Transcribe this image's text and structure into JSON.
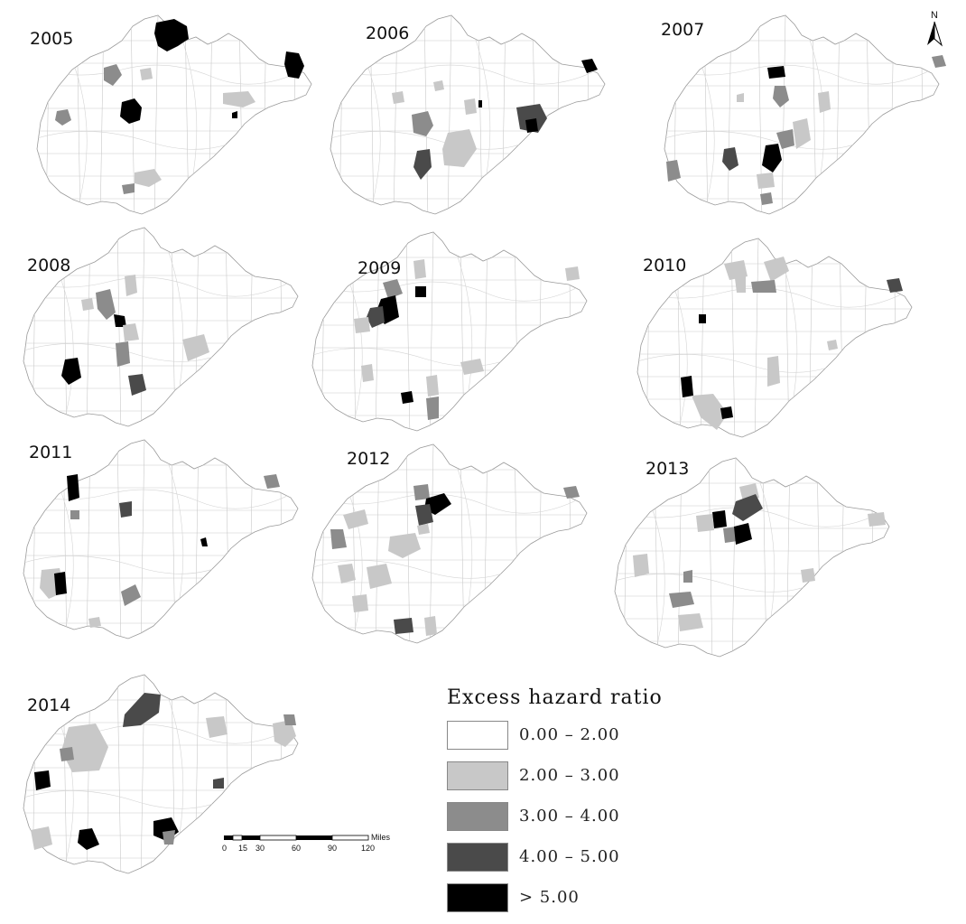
{
  "maps": [
    {
      "year": "2005"
    },
    {
      "year": "2006"
    },
    {
      "year": "2007"
    },
    {
      "year": "2008"
    },
    {
      "year": "2009"
    },
    {
      "year": "2010"
    },
    {
      "year": "2011"
    },
    {
      "year": "2012"
    },
    {
      "year": "2013"
    },
    {
      "year": "2014"
    }
  ],
  "legend": {
    "title": "Excess hazard ratio",
    "items": [
      {
        "label": "0.00 – 2.00",
        "color": "#ffffff"
      },
      {
        "label": "2.00 – 3.00",
        "color": "#c8c8c8"
      },
      {
        "label": "3.00 – 4.00",
        "color": "#8c8c8c"
      },
      {
        "label": "4.00 – 5.00",
        "color": "#4a4a4a"
      },
      {
        "label": "> 5.00",
        "color": "#000000"
      }
    ]
  },
  "scale_bar": {
    "unit": "Miles",
    "ticks": [
      "0",
      "15",
      "30",
      "60",
      "90",
      "120"
    ]
  },
  "north_arrow": {
    "label": "N",
    "icon": "north-arrow-icon"
  }
}
